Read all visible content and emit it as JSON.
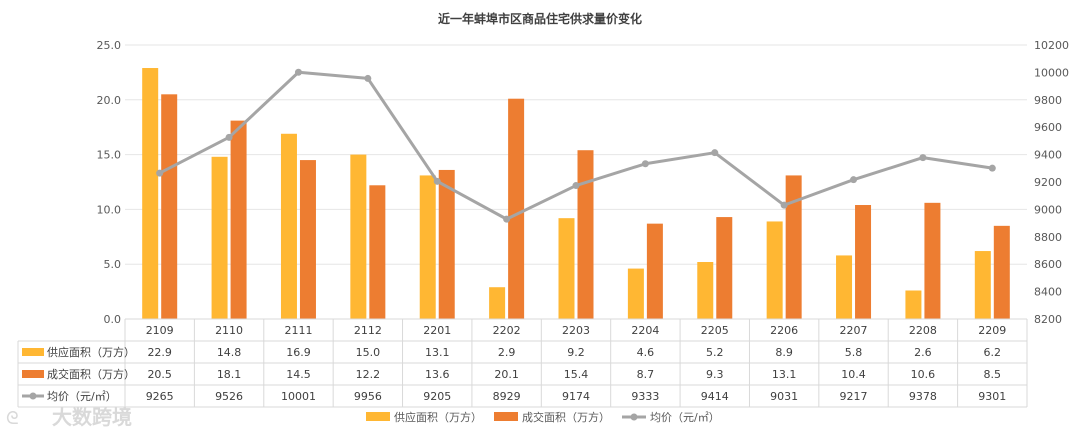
{
  "chart_data": {
    "type": "bar",
    "title": "近一年蚌埠市区商品住宅供求量价变化",
    "categories": [
      "2109",
      "2110",
      "2111",
      "2112",
      "2201",
      "2202",
      "2203",
      "2204",
      "2205",
      "2206",
      "2207",
      "2208",
      "2209"
    ],
    "series": [
      {
        "name": "供应面积（万方）",
        "type": "bar",
        "axis": "left",
        "color": "#FFB733",
        "values": [
          22.9,
          14.8,
          16.9,
          15.0,
          13.1,
          2.9,
          9.2,
          4.6,
          5.2,
          8.9,
          5.8,
          2.6,
          6.2
        ],
        "labels": [
          "22.9",
          "14.8",
          "16.9",
          "15.0",
          "13.1",
          "2.9",
          "9.2",
          "4.6",
          "5.2",
          "8.9",
          "5.8",
          "2.6",
          "6.2"
        ]
      },
      {
        "name": "成交面积（万方）",
        "type": "bar",
        "axis": "left",
        "color": "#ED7D31",
        "values": [
          20.5,
          18.1,
          14.5,
          12.2,
          13.6,
          20.1,
          15.4,
          8.7,
          9.3,
          13.1,
          10.4,
          10.6,
          8.5
        ],
        "labels": [
          "20.5",
          "18.1",
          "14.5",
          "12.2",
          "13.6",
          "20.1",
          "15.4",
          "8.7",
          "9.3",
          "13.1",
          "10.4",
          "10.6",
          "8.5"
        ]
      },
      {
        "name": "均价（元/㎡）",
        "type": "line",
        "axis": "right",
        "color": "#A5A5A5",
        "values": [
          9265,
          9526,
          10001,
          9956,
          9205,
          8929,
          9174,
          9333,
          9414,
          9031,
          9217,
          9378,
          9301
        ],
        "labels": [
          "9265",
          "9526",
          "10001",
          "9956",
          "9205",
          "8929",
          "9174",
          "9333",
          "9414",
          "9031",
          "9217",
          "9378",
          "9301"
        ]
      }
    ],
    "y_left": {
      "min": 0,
      "max": 25,
      "step": 5,
      "ticks": [
        "0.0",
        "5.0",
        "10.0",
        "15.0",
        "20.0",
        "25.0"
      ]
    },
    "y_right": {
      "min": 8200,
      "max": 10200,
      "step": 200,
      "ticks": [
        "8200",
        "8400",
        "8600",
        "8800",
        "9000",
        "9200",
        "9400",
        "9600",
        "9800",
        "10000",
        "10200"
      ]
    },
    "grid": true,
    "data_table": true,
    "legend_position": "bottom"
  },
  "watermark": "大数跨境"
}
